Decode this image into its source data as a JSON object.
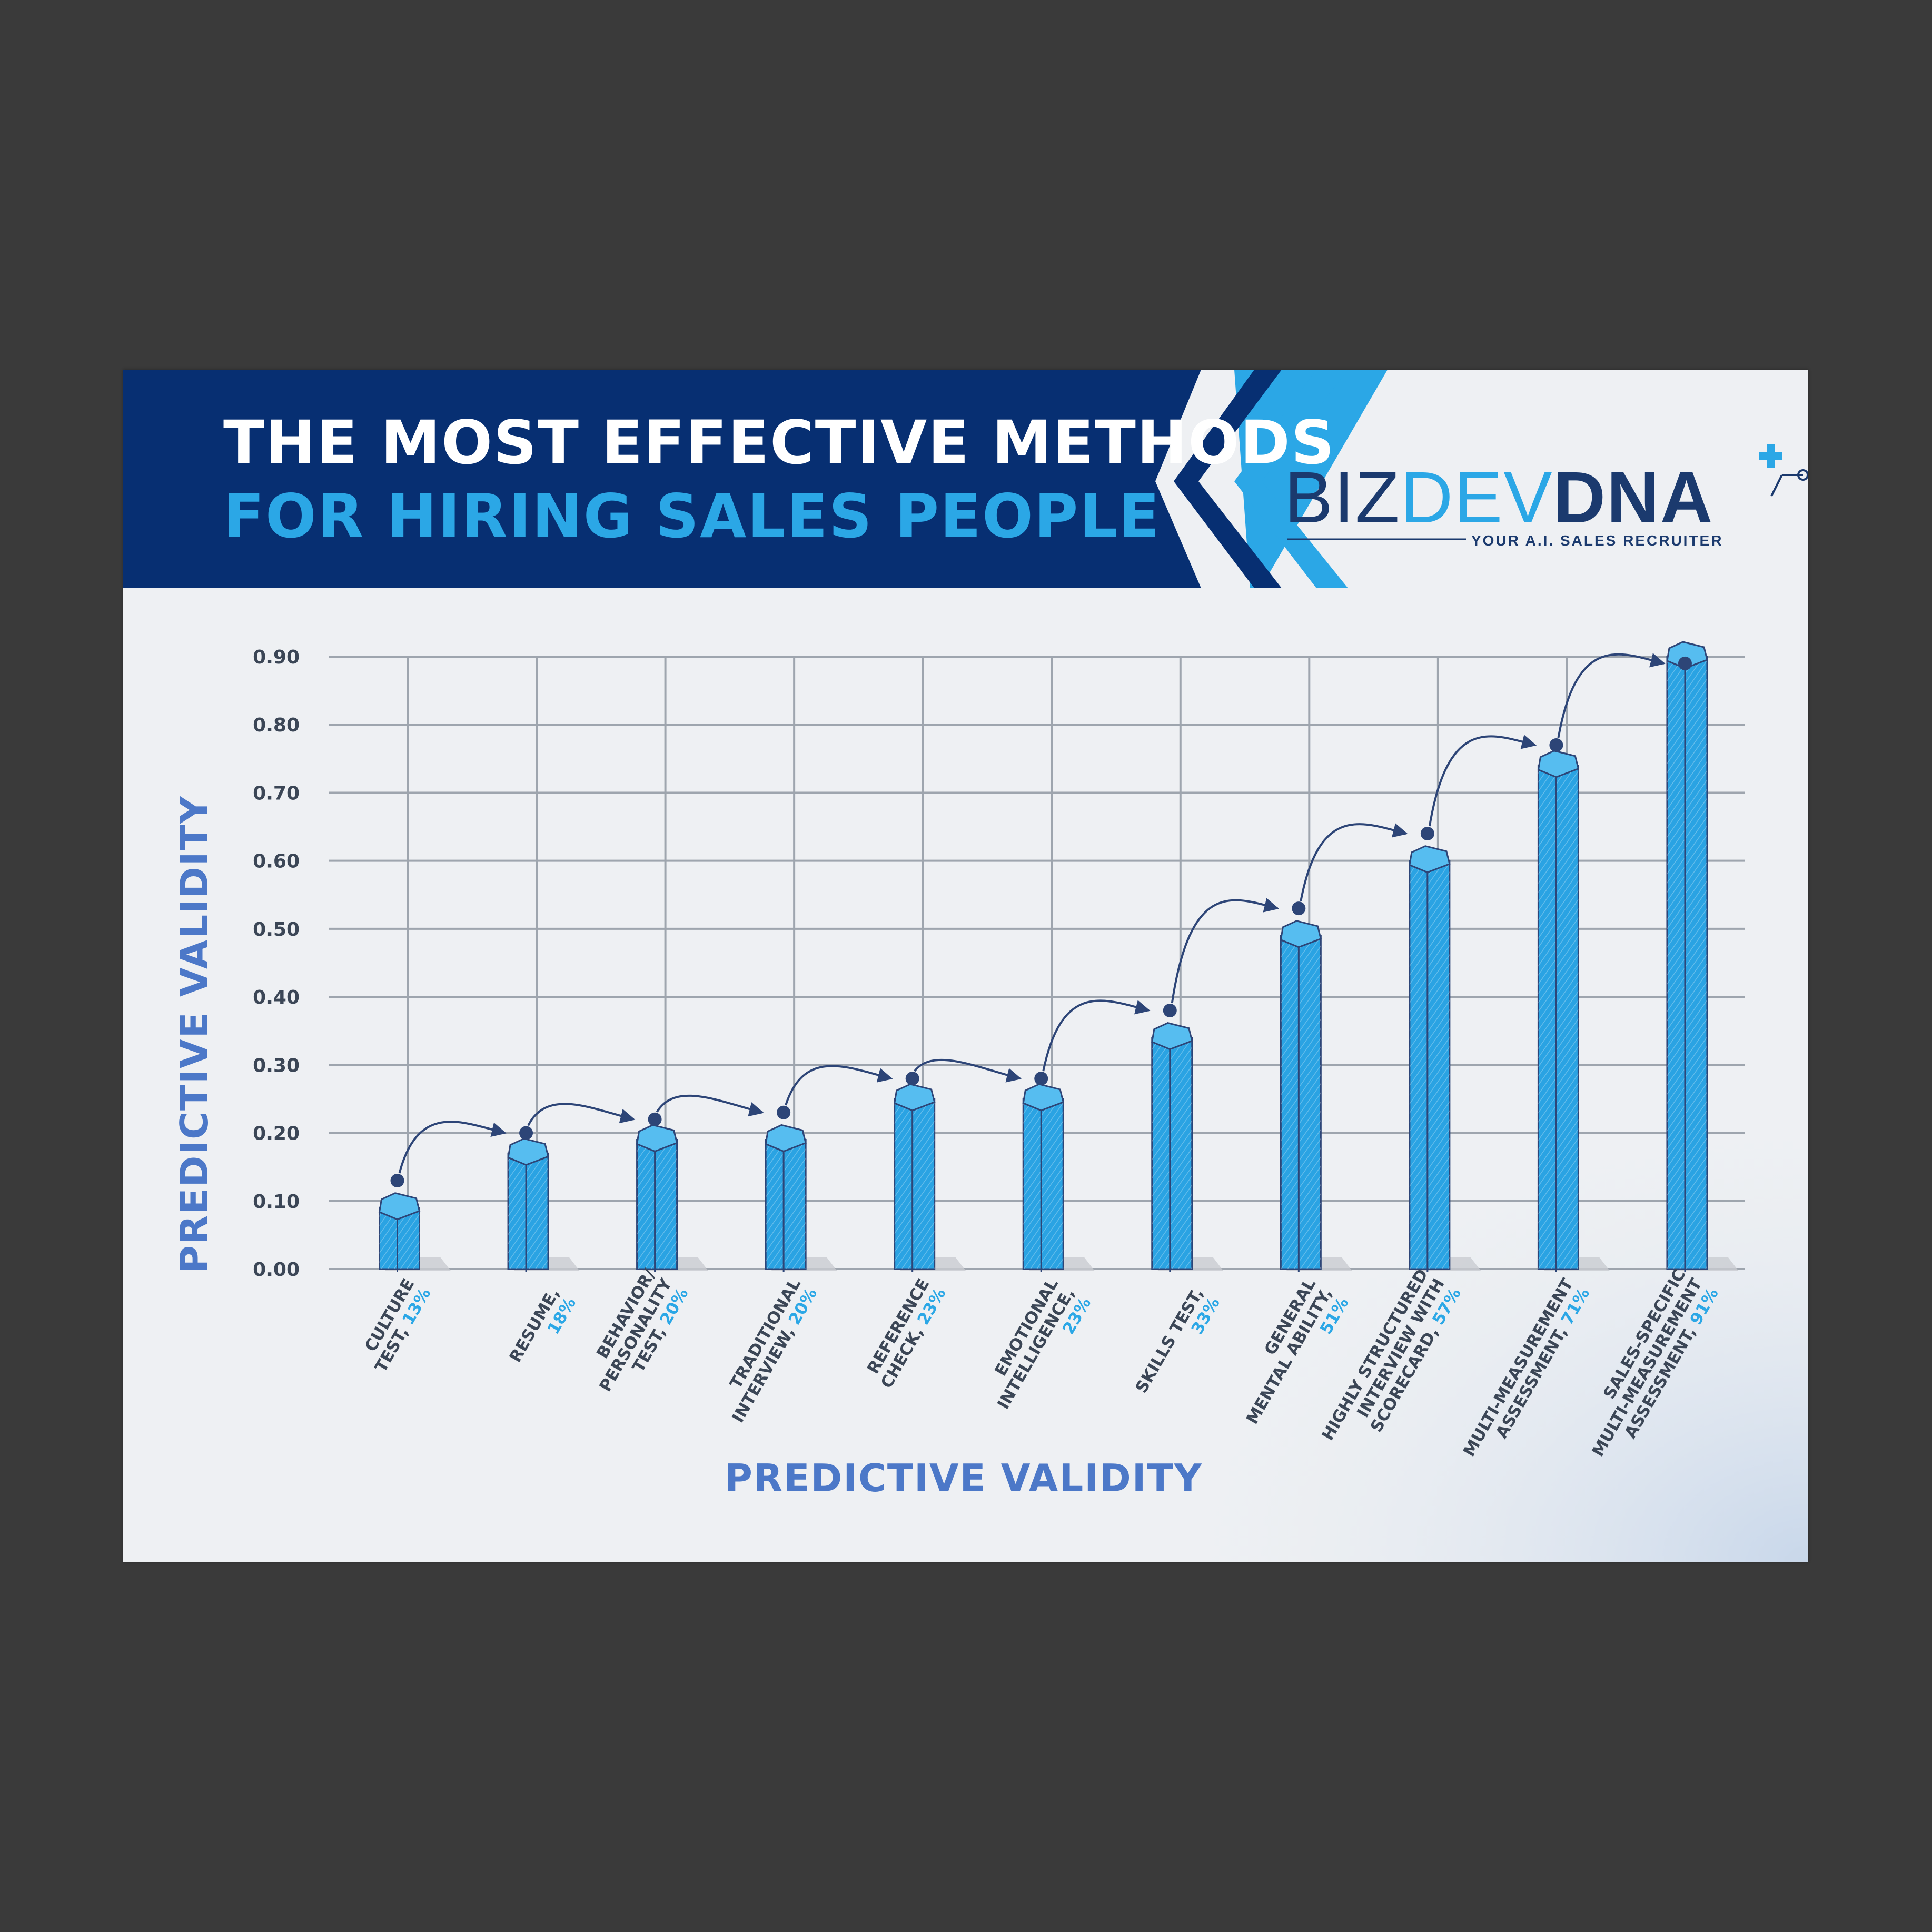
{
  "title": {
    "line1": "THE MOST EFFECTIVE METHODS",
    "line2": "FOR HIRING SALES PEOPLE"
  },
  "logo": {
    "part_biz": "BIZ",
    "part_dev": "DEV",
    "part_dna": "DNA",
    "tagline": "YOUR A.I. SALES RECRUITER",
    "icon": "plus-network-icon"
  },
  "colors": {
    "banner": "#072f72",
    "accent": "#2ba7e6",
    "bar": "#2aa3e3",
    "arrow": "#2d4577"
  },
  "chart_data": {
    "type": "bar",
    "ylabel": "PREDICTIVE VALIDITY",
    "xlabel": "PREDICTIVE VALIDITY",
    "ylim": [
      0,
      0.9
    ],
    "yticks": [
      "0.00",
      "0.10",
      "0.20",
      "0.30",
      "0.40",
      "0.50",
      "0.60",
      "0.70",
      "0.80",
      "0.90"
    ],
    "grid": true,
    "categories": [
      {
        "label_lines": [
          "CULTURE",
          "TEST, "
        ],
        "pct": "13%"
      },
      {
        "label_lines": [
          "RESUME,"
        ],
        "pct": "18%"
      },
      {
        "label_lines": [
          "BEHAVIOR/",
          "PERSONALITY",
          "TEST, "
        ],
        "pct": "20%"
      },
      {
        "label_lines": [
          "TRADITIONAL",
          "INTERVIEW, "
        ],
        "pct": "20%"
      },
      {
        "label_lines": [
          "REFERENCE",
          "CHECK, "
        ],
        "pct": "23%"
      },
      {
        "label_lines": [
          "EMOTIONAL",
          "INTELLIGENCE,"
        ],
        "pct": "23%"
      },
      {
        "label_lines": [
          "SKILLS TEST,"
        ],
        "pct": "33%"
      },
      {
        "label_lines": [
          "GENERAL",
          "MENTAL ABILITY,"
        ],
        "pct": "51%"
      },
      {
        "label_lines": [
          "HIGHLY STRUCTURED",
          "INTERVIEW WITH",
          "SCORECARD, "
        ],
        "pct": "57%"
      },
      {
        "label_lines": [
          "MULTI-MEASUREMENT",
          "ASSESSMENT, "
        ],
        "pct": "71%"
      },
      {
        "label_lines": [
          "SALES-SPECIFIC",
          "MULTI-MEASUREMENT",
          "ASSESSMENT, "
        ],
        "pct": "91%"
      }
    ],
    "values": [
      0.13,
      0.18,
      0.2,
      0.2,
      0.23,
      0.23,
      0.33,
      0.51,
      0.57,
      0.71,
      0.91
    ],
    "bar_heights": [
      0.09,
      0.17,
      0.19,
      0.19,
      0.25,
      0.25,
      0.34,
      0.49,
      0.6,
      0.74,
      0.9
    ],
    "markers": [
      0.13,
      0.2,
      0.22,
      0.23,
      0.28,
      0.28,
      0.38,
      0.53,
      0.64,
      0.77,
      0.89
    ]
  }
}
